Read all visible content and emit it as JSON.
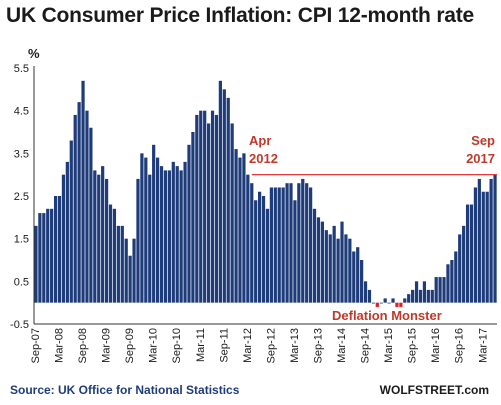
{
  "chart_data": {
    "type": "bar",
    "title": "UK Consumer Price Inflation: CPI 12-month rate",
    "ylabel": "%",
    "ylim": [
      -0.5,
      5.5
    ],
    "yticks": [
      "5.5",
      "4.5",
      "3.5",
      "2.5",
      "1.5",
      "0.5",
      "-0.5"
    ],
    "ytick_values": [
      5.5,
      4.5,
      3.5,
      2.5,
      1.5,
      0.5,
      -0.5
    ],
    "xtick_labels": [
      "Sep-07",
      "Mar-08",
      "Sep-08",
      "Mar-09",
      "Sep-09",
      "Mar-10",
      "Sep-10",
      "Mar-11",
      "Sep-11",
      "Mar-12",
      "Sep-12",
      "Mar-13",
      "Sep-13",
      "Mar-14",
      "Sep-14",
      "Mar-15",
      "Sep-15",
      "Mar-16",
      "Sep-16",
      "Mar-17",
      "Sep-17"
    ],
    "series": [
      {
        "color": "#1f3c7a",
        "values": [
          1.8,
          2.1,
          2.1,
          2.2,
          2.2,
          2.5,
          2.5,
          3.0,
          3.3,
          3.8,
          4.4,
          4.7,
          5.2,
          4.5,
          4.1,
          3.1,
          3.0,
          3.2,
          2.9,
          2.3,
          2.2,
          1.8,
          1.8,
          1.5,
          1.1,
          1.5,
          2.9,
          3.5,
          3.4,
          3.0,
          3.7,
          3.4,
          3.2,
          3.1,
          3.1,
          3.3,
          3.2,
          3.1,
          3.3,
          3.7,
          4.0,
          4.4,
          4.5,
          4.5,
          4.2,
          4.5,
          4.4,
          5.2,
          5.0,
          4.8,
          4.2,
          3.6,
          3.4,
          3.5,
          3.0,
          2.8,
          2.4,
          2.6,
          2.5,
          2.2,
          2.7,
          2.7,
          2.7,
          2.7,
          2.8,
          2.8,
          2.4,
          2.8,
          2.9,
          2.8,
          2.7,
          2.2,
          2.0,
          1.9,
          1.7,
          1.6,
          1.8,
          1.5,
          1.9,
          1.6,
          1.5,
          1.2,
          1.3,
          1.0,
          0.5,
          0.3,
          0.0,
          -0.1,
          0.0,
          0.1,
          0.0,
          0.1,
          -0.1,
          -0.1,
          0.1,
          0.2,
          0.3,
          0.5,
          0.3,
          0.5,
          0.3,
          0.3,
          0.6,
          0.6,
          0.6,
          0.9,
          1.0,
          1.2,
          1.6,
          1.8,
          2.3,
          2.3,
          2.7,
          2.9,
          2.6,
          2.6,
          2.9,
          3.0
        ]
      }
    ],
    "reference_line": {
      "value": 3.0,
      "color": "#e02020"
    },
    "annotations": [
      {
        "text": "Apr",
        "color": "#c0392b"
      },
      {
        "text": "2012",
        "color": "#c0392b"
      },
      {
        "text": "Sep",
        "color": "#c0392b"
      },
      {
        "text": "2017",
        "color": "#c0392b"
      },
      {
        "text": "Deflation Monster",
        "color": "#c0392b"
      }
    ],
    "grid": false
  },
  "footer": {
    "source": "Source: UK Office for National Statistics",
    "credit": "WOLFSTREET.com"
  }
}
